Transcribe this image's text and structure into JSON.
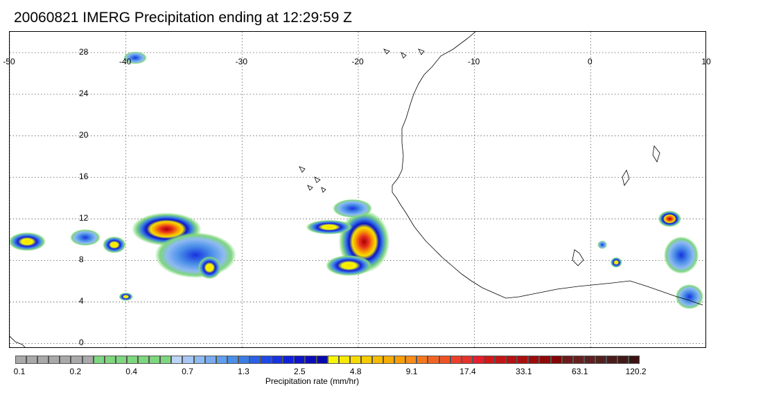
{
  "title": "20060821 IMERG Precipitation ending at 12:29:59 Z",
  "map": {
    "lon_labels": [
      {
        "lon": -50,
        "text": "-50"
      },
      {
        "lon": -40,
        "text": "-40"
      },
      {
        "lon": -30,
        "text": "-30"
      },
      {
        "lon": -20,
        "text": "-20"
      },
      {
        "lon": -10,
        "text": "-10"
      },
      {
        "lon": 0,
        "text": "0"
      },
      {
        "lon": 10,
        "text": "10"
      }
    ],
    "lat_labels": [
      {
        "lat": 28,
        "text": "28"
      },
      {
        "lat": 24,
        "text": "24"
      },
      {
        "lat": 20,
        "text": "20"
      },
      {
        "lat": 16,
        "text": "16"
      },
      {
        "lat": 12,
        "text": "12"
      },
      {
        "lat": 8,
        "text": "8"
      },
      {
        "lat": 4,
        "text": "4"
      },
      {
        "lat": 0,
        "text": "0"
      }
    ],
    "lon_range": [
      -50,
      10
    ],
    "lat_range": [
      -0.5,
      30
    ],
    "gridlines": true,
    "precip_cells": [
      {
        "lon": -39.2,
        "lat": 27.5,
        "rlon": 1.0,
        "rlat": 0.6,
        "peak": "blue"
      },
      {
        "lon": -36.5,
        "lat": 11.0,
        "rlon": 3.0,
        "rlat": 1.6,
        "peak": "red"
      },
      {
        "lon": -34.0,
        "lat": 8.5,
        "rlon": 3.5,
        "rlat": 2.2,
        "peak": "blue"
      },
      {
        "lon": -48.5,
        "lat": 9.8,
        "rlon": 1.6,
        "rlat": 0.9,
        "peak": "yellow"
      },
      {
        "lon": -43.5,
        "lat": 10.2,
        "rlon": 1.3,
        "rlat": 0.8,
        "peak": "blue"
      },
      {
        "lon": -41.0,
        "lat": 9.5,
        "rlon": 1.0,
        "rlat": 0.8,
        "peak": "yellow"
      },
      {
        "lon": -32.8,
        "lat": 7.3,
        "rlon": 1.0,
        "rlat": 1.1,
        "peak": "yellow"
      },
      {
        "lon": -40.0,
        "lat": 4.5,
        "rlon": 0.6,
        "rlat": 0.4,
        "peak": "yellow"
      },
      {
        "lon": -19.5,
        "lat": 9.8,
        "rlon": 2.2,
        "rlat": 3.0,
        "peak": "red"
      },
      {
        "lon": -22.5,
        "lat": 11.2,
        "rlon": 2.0,
        "rlat": 0.7,
        "peak": "yellow"
      },
      {
        "lon": -20.8,
        "lat": 7.5,
        "rlon": 2.0,
        "rlat": 1.0,
        "peak": "yellow"
      },
      {
        "lon": -20.5,
        "lat": 13.0,
        "rlon": 1.7,
        "rlat": 0.9,
        "peak": "blue"
      },
      {
        "lon": 6.8,
        "lat": 12.0,
        "rlon": 1.0,
        "rlat": 0.8,
        "peak": "red"
      },
      {
        "lon": 7.8,
        "lat": 8.5,
        "rlon": 1.5,
        "rlat": 1.8,
        "peak": "blue"
      },
      {
        "lon": 8.5,
        "lat": 4.5,
        "rlon": 1.2,
        "rlat": 1.2,
        "peak": "blue"
      },
      {
        "lon": 2.2,
        "lat": 7.8,
        "rlon": 0.5,
        "rlat": 0.5,
        "peak": "yellow"
      },
      {
        "lon": 1.0,
        "lat": 9.5,
        "rlon": 0.4,
        "rlat": 0.4,
        "peak": "blue"
      }
    ]
  },
  "colorbar": {
    "colors": [
      "#a9a9a9",
      "#a9a9a9",
      "#a9a9a9",
      "#a9a9a9",
      "#a9a9a9",
      "#a9a9a9",
      "#a9a9a9",
      "#7ed67e",
      "#7ed67e",
      "#7ed67e",
      "#7ed67e",
      "#7ed67e",
      "#7ed67e",
      "#7ed67e",
      "#bcd4f7",
      "#a6c8f5",
      "#8fbaf2",
      "#78acef",
      "#619eec",
      "#4a8fe8",
      "#3a7de4",
      "#2a60e8",
      "#1f48e6",
      "#1633e0",
      "#1020d6",
      "#0c14c8",
      "#0a0cba",
      "#0707ad",
      "#f7f700",
      "#f7e900",
      "#f7da00",
      "#f7cb00",
      "#f7bc00",
      "#f7ad00",
      "#f79e00",
      "#f78c1a",
      "#f5781e",
      "#f36422",
      "#f05226",
      "#ec402a",
      "#e8302c",
      "#e4202e",
      "#d01818",
      "#c31515",
      "#b61212",
      "#a90f0f",
      "#9c0c0c",
      "#8f0909",
      "#820606",
      "#6e1a1a",
      "#652020",
      "#5c2020",
      "#532020",
      "#4a1c1c",
      "#421818",
      "#3a1414"
    ],
    "tick_labels": [
      "0.1",
      "0.2",
      "0.4",
      "0.7",
      "1.3",
      "2.5",
      "4.8",
      "9.1",
      "17.4",
      "33.1",
      "63.1",
      "120.2"
    ],
    "label": "Precipitation rate (mm/hr)"
  }
}
